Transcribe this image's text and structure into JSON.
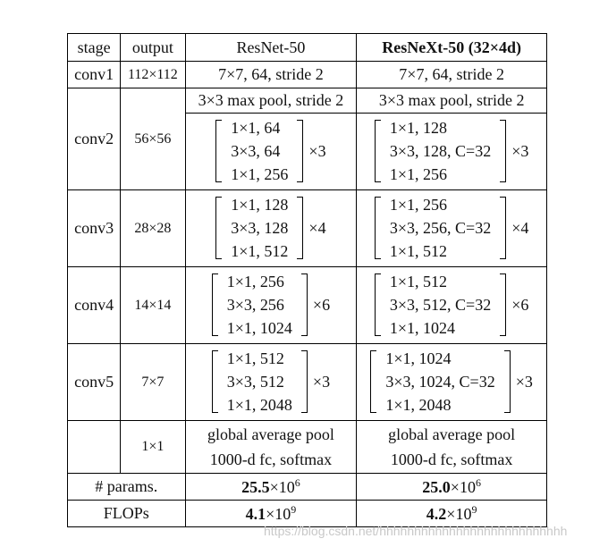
{
  "table": {
    "header": [
      "stage",
      "output",
      "ResNet-50",
      "ResNeXt-50 (32×4d)"
    ],
    "conv1": {
      "stage": "conv1",
      "output": "112×112",
      "resnet": "7×7, 64, stride 2",
      "resnext": "7×7, 64, stride 2"
    },
    "pool_row": {
      "resnet": "3×3 max pool, stride 2",
      "resnext": "3×3 max pool, stride 2"
    },
    "blocks": [
      {
        "stage": "conv2",
        "output": "56×56",
        "resnet": {
          "lines": [
            "1×1, 64",
            "3×3, 64",
            "1×1, 256"
          ],
          "repeat": "×3"
        },
        "resnext": {
          "lines": [
            "1×1, 128",
            "3×3, 128, C=32",
            "1×1, 256"
          ],
          "repeat": "×3"
        }
      },
      {
        "stage": "conv3",
        "output": "28×28",
        "resnet": {
          "lines": [
            "1×1, 128",
            "3×3, 128",
            "1×1, 512"
          ],
          "repeat": "×4"
        },
        "resnext": {
          "lines": [
            "1×1, 256",
            "3×3, 256, C=32",
            "1×1, 512"
          ],
          "repeat": "×4"
        }
      },
      {
        "stage": "conv4",
        "output": "14×14",
        "resnet": {
          "lines": [
            "1×1, 256",
            "3×3, 256",
            "1×1, 1024"
          ],
          "repeat": "×6"
        },
        "resnext": {
          "lines": [
            "1×1, 512",
            "3×3, 512, C=32",
            "1×1, 1024"
          ],
          "repeat": "×6"
        }
      },
      {
        "stage": "conv5",
        "output": "7×7",
        "resnet": {
          "lines": [
            "1×1, 512",
            "3×3, 512",
            "1×1, 2048"
          ],
          "repeat": "×3"
        },
        "resnext": {
          "lines": [
            "1×1, 1024",
            "3×3, 1024, C=32",
            "1×1, 2048"
          ],
          "repeat": "×3"
        }
      }
    ],
    "head": {
      "output": "1×1",
      "resnet": [
        "global average pool",
        "1000-d fc, softmax"
      ],
      "resnext": [
        "global average pool",
        "1000-d fc, softmax"
      ]
    },
    "params": {
      "label": "# params.",
      "resnet": {
        "mantissa": "25.5",
        "base": "×10",
        "exponent": "6"
      },
      "resnext": {
        "mantissa": "25.0",
        "base": "×10",
        "exponent": "6"
      }
    },
    "flops": {
      "label": "FLOPs",
      "resnet": {
        "mantissa": "4.1",
        "base": "×10",
        "exponent": "9"
      },
      "resnext": {
        "mantissa": "4.2",
        "base": "×10",
        "exponent": "9"
      }
    }
  },
  "watermark": "https://blog.csdn.net/hhhhhhhhhhhhhhhhhhhhhhhhhhh"
}
